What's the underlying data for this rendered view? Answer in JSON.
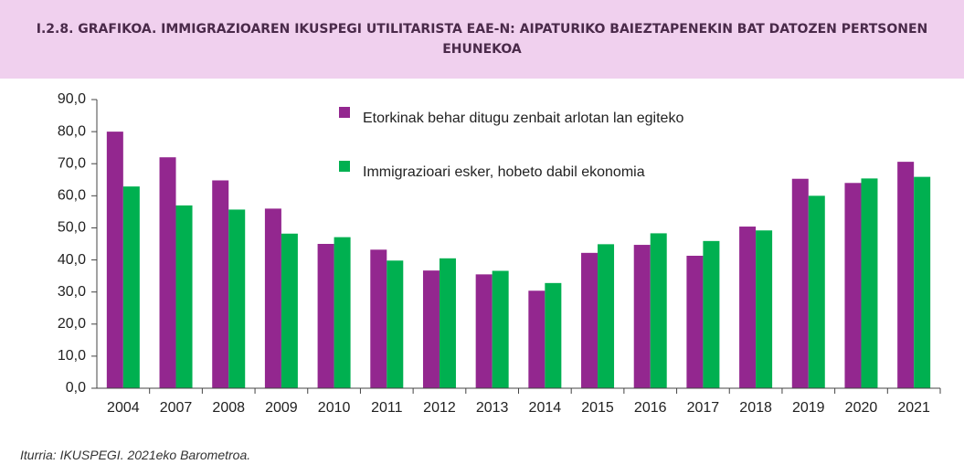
{
  "chart_data": {
    "type": "bar",
    "title": "I.2.8. GRAFIKOA. IMMIGRAZIOAREN IKUSPEGI UTILITARISTA EAE-N: AIPATURIKO BAIEZTAPENEKIN BAT DATOZEN PERTSONEN EHUNEKOA",
    "categories": [
      "2004",
      "2007",
      "2008",
      "2009",
      "2010",
      "2011",
      "2012",
      "2013",
      "2014",
      "2015",
      "2016",
      "2017",
      "2018",
      "2019",
      "2020",
      "2021"
    ],
    "series": [
      {
        "name": "Etorkinak behar ditugu zenbait arlotan lan egiteko",
        "color": "#93278f",
        "values": [
          80.0,
          72.0,
          64.8,
          56.0,
          45.0,
          43.2,
          36.7,
          35.5,
          30.4,
          42.2,
          44.7,
          41.3,
          50.4,
          65.3,
          64.0,
          70.6
        ]
      },
      {
        "name": "Immigrazioari esker, hobeto dabil ekonomia",
        "color": "#00b050",
        "values": [
          62.9,
          57.0,
          55.7,
          48.2,
          47.1,
          39.8,
          40.5,
          36.6,
          32.8,
          44.9,
          48.3,
          45.9,
          49.2,
          60.0,
          65.4,
          65.9
        ]
      }
    ],
    "ylim": [
      0,
      90
    ],
    "yticks": [
      {
        "value": 0,
        "label": "0,0"
      },
      {
        "value": 10,
        "label": "10,0"
      },
      {
        "value": 20,
        "label": "20,0"
      },
      {
        "value": 30,
        "label": "30,0"
      },
      {
        "value": 40,
        "label": "40,0"
      },
      {
        "value": 50,
        "label": "50,0"
      },
      {
        "value": 60,
        "label": "60,0"
      },
      {
        "value": 70,
        "label": "70,0"
      },
      {
        "value": 80,
        "label": "80,0"
      },
      {
        "value": 90,
        "label": "90,0"
      }
    ],
    "grid": false,
    "source": "Iturria: IKUSPEGI. 2021eko Barometroa."
  }
}
